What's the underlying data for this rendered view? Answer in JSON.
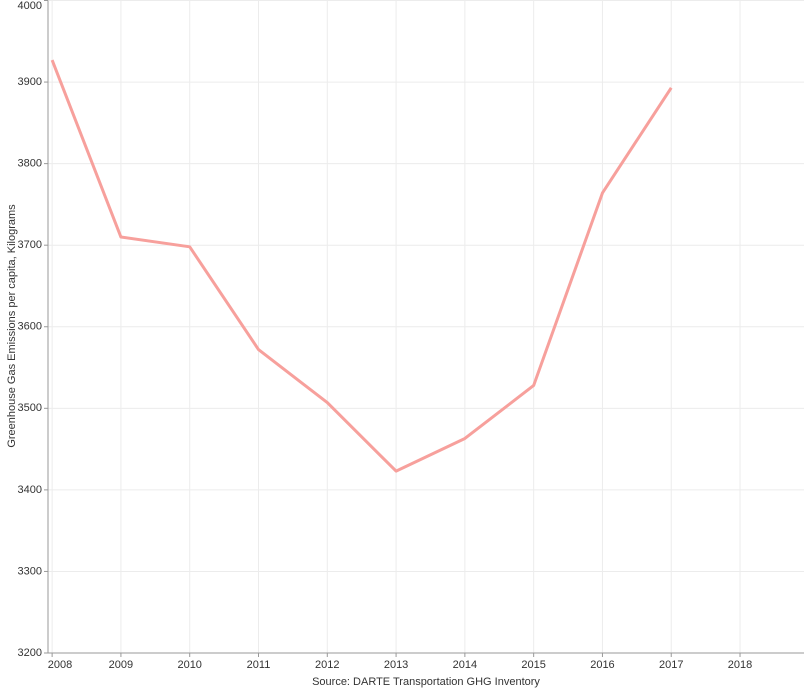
{
  "chart_data": {
    "type": "line",
    "y_label": "Greenhouse Gas Emissions per capita, Kilograms",
    "source": "Source:  DARTE Transportation GHG Inventory",
    "x": [
      2008,
      2009,
      2010,
      2011,
      2012,
      2013,
      2014,
      2015,
      2016,
      2017
    ],
    "series": [
      {
        "color": "#f7a09c",
        "values": [
          3927,
          3710,
          3698,
          3572,
          3507,
          3423,
          3463,
          3528,
          3764,
          3893
        ]
      }
    ],
    "xlim": [
      2007.94,
      2018.93
    ],
    "xticks": [
      2008,
      2009,
      2010,
      2011,
      2012,
      2013,
      2014,
      2015,
      2016,
      2017,
      2018
    ],
    "ylim": [
      3200,
      4000
    ],
    "yticks": [
      3200,
      3300,
      3400,
      3500,
      3600,
      3700,
      3800,
      3900,
      4000
    ],
    "grid": true
  }
}
